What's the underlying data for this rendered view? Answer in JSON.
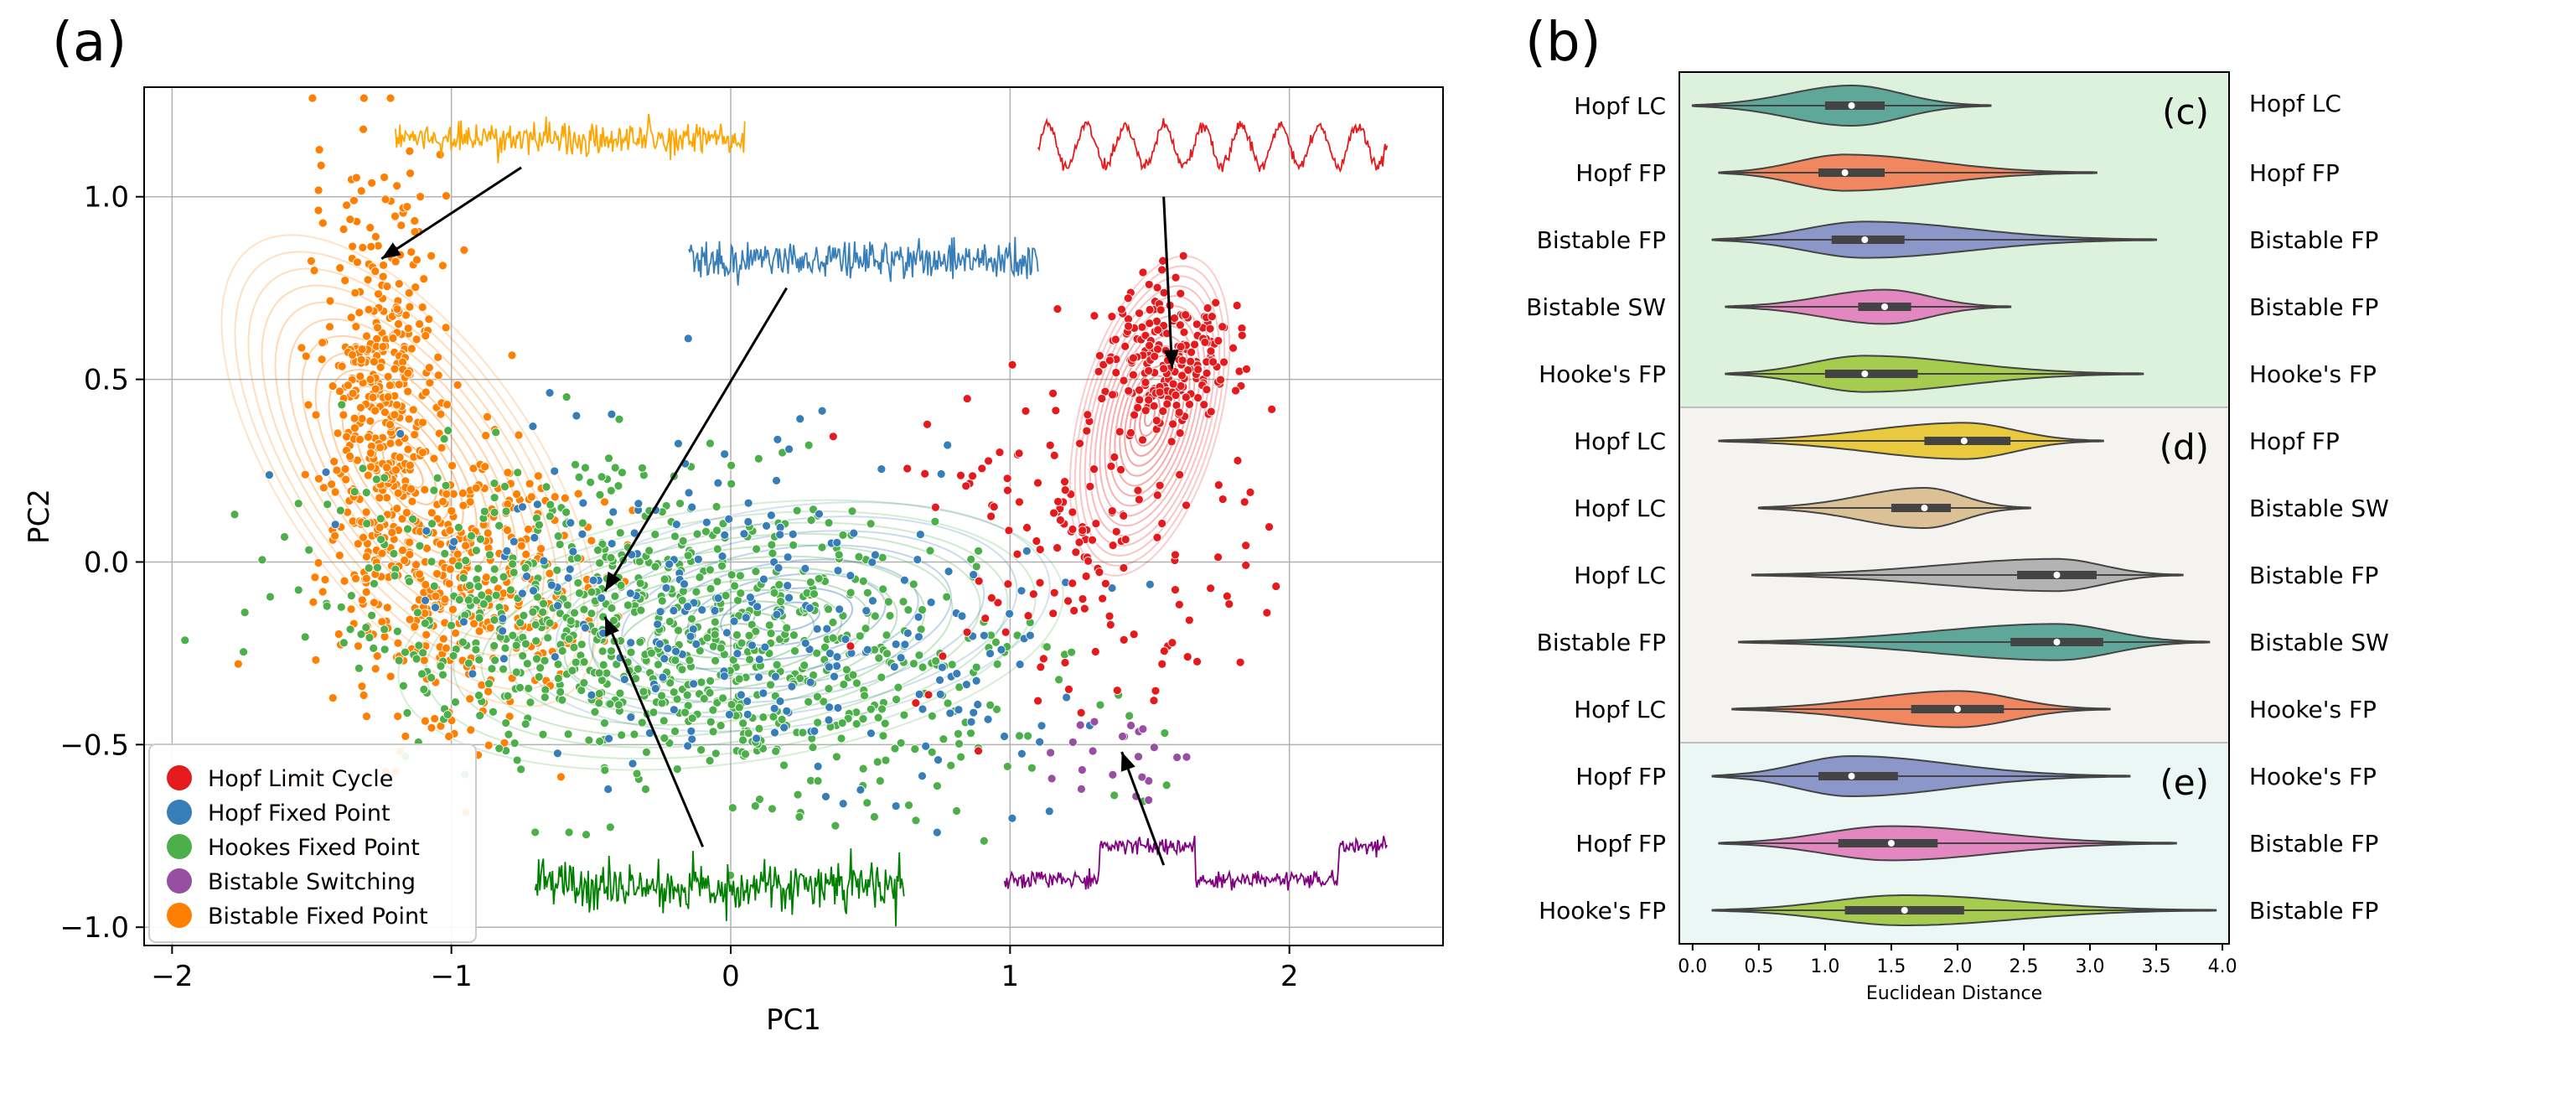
{
  "panels": {
    "a_label": "(a)",
    "b_label": "(b)"
  },
  "chart_data": [
    {
      "type": "scatter",
      "title": "",
      "xlabel": "PC1",
      "ylabel": "PC2",
      "xlim": [
        -2.1,
        2.55
      ],
      "ylim": [
        -1.05,
        1.3
      ],
      "xticks": [
        -2,
        -1,
        0,
        1,
        2
      ],
      "xticklabels": [
        "−2",
        "−1",
        "0",
        "1",
        "2"
      ],
      "yticks": [
        -1.0,
        -0.5,
        0.0,
        0.5,
        1.0
      ],
      "yticklabels": [
        "−1.0",
        "−0.5",
        "0.0",
        "0.5",
        "1.0"
      ],
      "grid": true,
      "legend_position": "bottom-left",
      "series": [
        {
          "name": "Hopf Limit Cycle",
          "color": "#e41a1c",
          "cluster": {
            "cx": 1.55,
            "cy": 0.55,
            "sx": 0.12,
            "sy": 0.1,
            "n": 220
          },
          "cluster2": {
            "cx": 1.25,
            "cy": 0.05,
            "sx": 0.3,
            "sy": 0.25,
            "n": 160
          }
        },
        {
          "name": "Hopf Fixed Point",
          "color": "#377eb8",
          "cluster": {
            "cx": 0.1,
            "cy": -0.15,
            "sx": 0.55,
            "sy": 0.22,
            "n": 260
          }
        },
        {
          "name": "Hookes Fixed Point",
          "color": "#4daf4a",
          "cluster": {
            "cx": -0.2,
            "cy": -0.2,
            "sx": 0.6,
            "sy": 0.2,
            "n": 900
          }
        },
        {
          "name": "Bistable Switching",
          "color": "#984ea3",
          "cluster": {
            "cx": 1.35,
            "cy": -0.55,
            "sx": 0.15,
            "sy": 0.06,
            "n": 22
          }
        },
        {
          "name": "Bistable Fixed Point",
          "color": "#ff7f00",
          "cluster": {
            "cx": -1.25,
            "cy": 0.45,
            "sx": 0.12,
            "sy": 0.3,
            "n": 420
          },
          "cluster2": {
            "cx": -0.95,
            "cy": -0.05,
            "sx": 0.22,
            "sy": 0.2,
            "n": 380
          }
        }
      ],
      "insets": [
        {
          "color": "#ffa500",
          "style": "noise",
          "x0": -1.2,
          "x1": 0.05,
          "y": 1.16,
          "amp": 0.05,
          "target": [
            -1.25,
            0.83
          ]
        },
        {
          "color": "#377eb8",
          "style": "noise",
          "x0": -0.15,
          "x1": 1.1,
          "y": 0.83,
          "amp": 0.06,
          "target": [
            -0.45,
            -0.08
          ]
        },
        {
          "color": "#e41a1c",
          "style": "sine",
          "x0": 1.1,
          "x1": 2.35,
          "y": 1.14,
          "amp": 0.07,
          "target": [
            1.58,
            0.53
          ]
        },
        {
          "color": "#008000",
          "style": "noise",
          "x0": -0.7,
          "x1": 0.62,
          "y": -0.89,
          "amp": 0.07,
          "target": [
            -0.45,
            -0.15
          ]
        },
        {
          "color": "#800080",
          "style": "switch",
          "x0": 0.98,
          "x1": 2.35,
          "y": -0.82,
          "amp": 0.07,
          "target": [
            1.4,
            -0.52
          ]
        }
      ]
    },
    {
      "type": "violin",
      "xlabel": "Euclidean Distance",
      "xlim": [
        -0.1,
        4.05
      ],
      "xticks": [
        0.0,
        0.5,
        1.0,
        1.5,
        2.0,
        2.5,
        3.0,
        3.5,
        4.0
      ],
      "xticklabels": [
        "0.0",
        "0.5",
        "1.0",
        "1.5",
        "2.0",
        "2.5",
        "3.0",
        "3.5",
        "4.0"
      ],
      "groups": [
        {
          "label": "(c)",
          "bg": "#dcf2dc",
          "rows": 5
        },
        {
          "label": "(d)",
          "bg": "#f5f3f0",
          "rows": 5
        },
        {
          "label": "(e)",
          "bg": "#eaf7f4",
          "rows": 3
        }
      ],
      "rows": [
        {
          "left": "Hopf LC",
          "right": "Hopf LC",
          "color": "#5fa899",
          "min": 0.0,
          "max": 2.25,
          "q1": 1.0,
          "q3": 1.45,
          "median": 1.2,
          "width": 1.0
        },
        {
          "left": "Hopf FP",
          "right": "Hopf FP",
          "color": "#f0875f",
          "min": 0.2,
          "max": 3.05,
          "q1": 0.95,
          "q3": 1.45,
          "median": 1.15,
          "width": 0.9
        },
        {
          "left": "Bistable FP",
          "right": "Bistable FP",
          "color": "#8c97c9",
          "min": 0.15,
          "max": 3.5,
          "q1": 1.05,
          "q3": 1.6,
          "median": 1.3,
          "width": 0.9
        },
        {
          "left": "Bistable SW",
          "right": "Bistable FP",
          "color": "#e287bf",
          "min": 0.25,
          "max": 2.4,
          "q1": 1.25,
          "q3": 1.65,
          "median": 1.45,
          "width": 0.85
        },
        {
          "left": "Hooke's FP",
          "right": "Hooke's FP",
          "color": "#a6cc4f",
          "min": 0.25,
          "max": 3.4,
          "q1": 1.0,
          "q3": 1.7,
          "median": 1.3,
          "width": 0.9
        },
        {
          "left": "Hopf LC",
          "right": "Hopf FP",
          "color": "#e9c93e",
          "min": 0.2,
          "max": 3.1,
          "q1": 1.75,
          "q3": 2.4,
          "median": 2.05,
          "width": 0.9
        },
        {
          "left": "Hopf LC",
          "right": "Bistable SW",
          "color": "#dcc196",
          "min": 0.5,
          "max": 2.55,
          "q1": 1.5,
          "q3": 1.95,
          "median": 1.75,
          "width": 1.0
        },
        {
          "left": "Hopf LC",
          "right": "Bistable FP",
          "color": "#b3b3b3",
          "min": 0.45,
          "max": 3.7,
          "q1": 2.45,
          "q3": 3.05,
          "median": 2.75,
          "width": 0.8
        },
        {
          "left": "Bistable FP",
          "right": "Bistable SW",
          "color": "#5fa899",
          "min": 0.35,
          "max": 3.9,
          "q1": 2.4,
          "q3": 3.1,
          "median": 2.75,
          "width": 0.9
        },
        {
          "left": "Hopf LC",
          "right": "Hooke's FP",
          "color": "#f0875f",
          "min": 0.3,
          "max": 3.15,
          "q1": 1.65,
          "q3": 2.35,
          "median": 2.0,
          "width": 0.9
        },
        {
          "left": "Hopf FP",
          "right": "Hooke's FP",
          "color": "#8c97c9",
          "min": 0.15,
          "max": 3.3,
          "q1": 0.95,
          "q3": 1.55,
          "median": 1.2,
          "width": 1.0
        },
        {
          "left": "Hopf FP",
          "right": "Bistable FP",
          "color": "#e287bf",
          "min": 0.2,
          "max": 3.65,
          "q1": 1.1,
          "q3": 1.85,
          "median": 1.5,
          "width": 0.85
        },
        {
          "left": "Hooke's FP",
          "right": "Bistable FP",
          "color": "#a6cc4f",
          "min": 0.15,
          "max": 3.95,
          "q1": 1.15,
          "q3": 2.05,
          "median": 1.6,
          "width": 0.75
        }
      ]
    }
  ]
}
